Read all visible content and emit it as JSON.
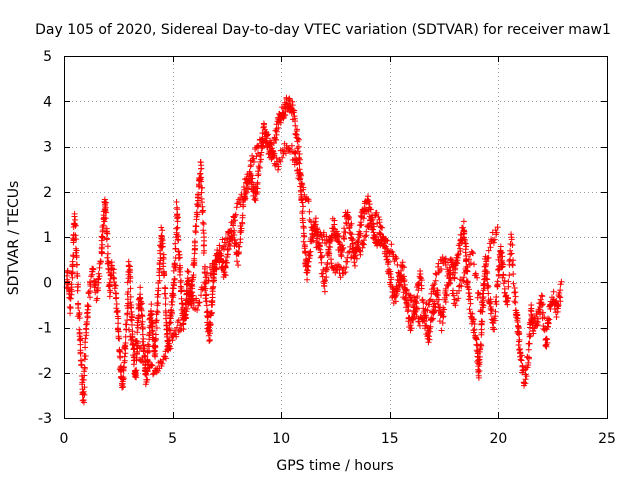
{
  "chart_data": {
    "type": "scatter",
    "title": "Day 105 of 2020, Sidereal Day-to-day VTEC variation (SDTVAR) for receiver maw1",
    "xlabel": "GPS time / hours",
    "ylabel": "SDTVAR / TECUs",
    "xlim": [
      0,
      25
    ],
    "ylim": [
      -3,
      5
    ],
    "xticks": [
      0,
      5,
      10,
      15,
      20,
      25
    ],
    "yticks": [
      -3,
      -2,
      -1,
      0,
      1,
      2,
      3,
      4,
      5
    ],
    "grid": true,
    "marker": "+",
    "color": "#ff0000",
    "series": [
      {
        "name": "maw1",
        "shape": [
          [
            0.0,
            -0.4
          ],
          [
            0.15,
            0.2
          ],
          [
            0.3,
            -0.6
          ],
          [
            0.4,
            0.5
          ],
          [
            0.5,
            1.5
          ],
          [
            0.6,
            0.2
          ],
          [
            0.7,
            -0.9
          ],
          [
            0.8,
            -1.8
          ],
          [
            0.9,
            -2.6
          ],
          [
            1.0,
            -1.2
          ],
          [
            1.1,
            -0.5
          ],
          [
            1.3,
            0.3
          ],
          [
            1.5,
            -0.3
          ],
          [
            1.7,
            0.5
          ],
          [
            1.8,
            1.2
          ],
          [
            1.9,
            1.8
          ],
          [
            2.0,
            0.8
          ],
          [
            2.1,
            -0.2
          ],
          [
            2.2,
            0.4
          ],
          [
            2.4,
            -0.3
          ],
          [
            2.5,
            -1.0
          ],
          [
            2.6,
            -1.9
          ],
          [
            2.7,
            -2.3
          ],
          [
            2.8,
            -1.5
          ],
          [
            2.9,
            -0.7
          ],
          [
            3.0,
            0.5
          ],
          [
            3.1,
            -0.6
          ],
          [
            3.2,
            -1.5
          ],
          [
            3.3,
            -2.2
          ],
          [
            3.4,
            -1.0
          ],
          [
            3.5,
            -0.2
          ],
          [
            3.6,
            -0.8
          ],
          [
            3.7,
            -1.6
          ],
          [
            3.8,
            -2.2
          ],
          [
            3.9,
            -1.4
          ],
          [
            4.0,
            -0.6
          ],
          [
            4.1,
            -1.2
          ],
          [
            4.2,
            -1.6
          ],
          [
            4.3,
            -0.5
          ],
          [
            4.4,
            0.4
          ],
          [
            4.5,
            1.1
          ],
          [
            4.6,
            0.3
          ],
          [
            4.7,
            -0.8
          ],
          [
            4.8,
            -1.5
          ],
          [
            4.9,
            -0.9
          ],
          [
            5.0,
            -0.3
          ],
          [
            5.1,
            0.3
          ],
          [
            5.2,
            1.6
          ],
          [
            5.3,
            0.6
          ],
          [
            5.4,
            -0.2
          ],
          [
            5.5,
            -1.0
          ],
          [
            5.6,
            -0.6
          ],
          [
            5.7,
            0.2
          ],
          [
            5.8,
            -0.4
          ],
          [
            5.9,
            -0.1
          ],
          [
            6.0,
            0.5
          ],
          [
            6.1,
            1.4
          ],
          [
            6.2,
            2.0
          ],
          [
            6.3,
            2.6
          ],
          [
            6.4,
            1.4
          ],
          [
            6.5,
            0.1
          ],
          [
            6.6,
            -0.8
          ],
          [
            6.7,
            -1.2
          ],
          [
            6.8,
            -0.5
          ],
          [
            6.9,
            0.2
          ],
          [
            7.0,
            0.4
          ],
          [
            7.2,
            0.6
          ],
          [
            7.4,
            0.2
          ],
          [
            7.6,
            0.8
          ],
          [
            7.8,
            1.2
          ],
          [
            8.0,
            0.5
          ],
          [
            8.2,
            1.4
          ],
          [
            8.4,
            2.1
          ],
          [
            8.6,
            2.4
          ],
          [
            8.8,
            1.8
          ],
          [
            9.0,
            2.5
          ],
          [
            9.2,
            3.4
          ],
          [
            9.4,
            3.0
          ],
          [
            9.6,
            2.8
          ],
          [
            9.8,
            3.4
          ],
          [
            10.0,
            3.7
          ],
          [
            10.2,
            3.9
          ],
          [
            10.4,
            4.0
          ],
          [
            10.6,
            3.6
          ],
          [
            10.8,
            3.0
          ],
          [
            10.9,
            2.2
          ],
          [
            11.0,
            1.4
          ],
          [
            11.1,
            0.6
          ],
          [
            11.2,
            0.2
          ],
          [
            11.4,
            0.9
          ],
          [
            11.6,
            1.3
          ],
          [
            11.8,
            0.6
          ],
          [
            12.0,
            -0.1
          ],
          [
            12.2,
            0.8
          ],
          [
            12.4,
            1.3
          ],
          [
            12.6,
            1.0
          ],
          [
            12.8,
            0.6
          ],
          [
            13.0,
            1.5
          ],
          [
            13.2,
            1.2
          ],
          [
            13.4,
            0.5
          ],
          [
            13.6,
            1.1
          ],
          [
            13.8,
            1.6
          ],
          [
            14.0,
            1.8
          ],
          [
            14.2,
            1.2
          ],
          [
            14.4,
            0.9
          ],
          [
            14.6,
            1.0
          ],
          [
            14.8,
            0.7
          ],
          [
            15.0,
            0.2
          ],
          [
            15.2,
            -0.4
          ],
          [
            15.4,
            0.0
          ],
          [
            15.6,
            0.3
          ],
          [
            15.8,
            -0.6
          ],
          [
            16.0,
            -1.0
          ],
          [
            16.2,
            -0.4
          ],
          [
            16.4,
            0.2
          ],
          [
            16.6,
            -0.8
          ],
          [
            16.8,
            -1.2
          ],
          [
            17.0,
            -0.6
          ],
          [
            17.2,
            -0.3
          ],
          [
            17.4,
            -0.9
          ],
          [
            17.6,
            -0.2
          ],
          [
            17.8,
            0.4
          ],
          [
            18.0,
            0.2
          ],
          [
            18.2,
            0.8
          ],
          [
            18.4,
            1.2
          ],
          [
            18.5,
            0.6
          ],
          [
            18.6,
            -0.2
          ],
          [
            18.8,
            -0.8
          ],
          [
            19.0,
            -1.4
          ],
          [
            19.1,
            -2.0
          ],
          [
            19.2,
            -1.2
          ],
          [
            19.3,
            -0.3
          ],
          [
            19.4,
            0.4
          ],
          [
            19.6,
            -0.4
          ],
          [
            19.8,
            -1.0
          ],
          [
            20.0,
            0.2
          ],
          [
            20.1,
            0.7
          ],
          [
            20.2,
            0.2
          ],
          [
            20.4,
            -0.5
          ],
          [
            20.6,
            1.0
          ],
          [
            20.8,
            -0.6
          ],
          [
            20.9,
            -1.0
          ],
          [
            21.0,
            -1.6
          ],
          [
            21.2,
            -2.2
          ],
          [
            21.4,
            -1.6
          ],
          [
            21.5,
            -0.6
          ],
          [
            21.6,
            -1.0
          ],
          [
            21.8,
            -0.8
          ],
          [
            22.0,
            -0.4
          ],
          [
            22.2,
            -1.4
          ],
          [
            22.3,
            -0.8
          ],
          [
            22.5,
            -0.3
          ],
          [
            22.7,
            -0.6
          ],
          [
            22.9,
            -0.1
          ]
        ],
        "secondary_shape": [
          [
            3.0,
            -1.1
          ],
          [
            3.4,
            -1.5
          ],
          [
            3.8,
            -1.8
          ],
          [
            4.2,
            -2.0
          ],
          [
            4.6,
            -1.7
          ],
          [
            5.0,
            -1.2
          ],
          [
            5.4,
            -0.9
          ],
          [
            5.8,
            -0.4
          ],
          [
            6.2,
            -0.5
          ],
          [
            6.6,
            0.1
          ],
          [
            7.0,
            0.5
          ],
          [
            7.4,
            0.9
          ],
          [
            7.8,
            1.4
          ],
          [
            8.2,
            1.9
          ],
          [
            8.6,
            2.6
          ],
          [
            9.0,
            3.0
          ],
          [
            9.4,
            3.2
          ],
          [
            9.8,
            2.6
          ],
          [
            10.2,
            3.0
          ],
          [
            10.6,
            2.8
          ],
          [
            10.8,
            2.4
          ],
          [
            11.2,
            1.8
          ],
          [
            11.6,
            0.9
          ],
          [
            12.0,
            1.0
          ],
          [
            12.4,
            0.4
          ],
          [
            12.8,
            0.2
          ],
          [
            13.2,
            0.7
          ],
          [
            13.6,
            0.6
          ],
          [
            14.0,
            1.3
          ],
          [
            14.4,
            1.4
          ],
          [
            14.8,
            0.9
          ],
          [
            15.2,
            0.6
          ],
          [
            15.6,
            -0.2
          ],
          [
            16.0,
            -0.3
          ],
          [
            16.4,
            -0.9
          ],
          [
            16.8,
            -0.5
          ],
          [
            17.2,
            0.3
          ],
          [
            17.6,
            0.5
          ],
          [
            18.0,
            -0.5
          ],
          [
            18.4,
            0.2
          ],
          [
            18.8,
            0.6
          ],
          [
            19.2,
            -0.6
          ],
          [
            19.6,
            0.9
          ],
          [
            20.0,
            1.1
          ]
        ]
      }
    ]
  }
}
